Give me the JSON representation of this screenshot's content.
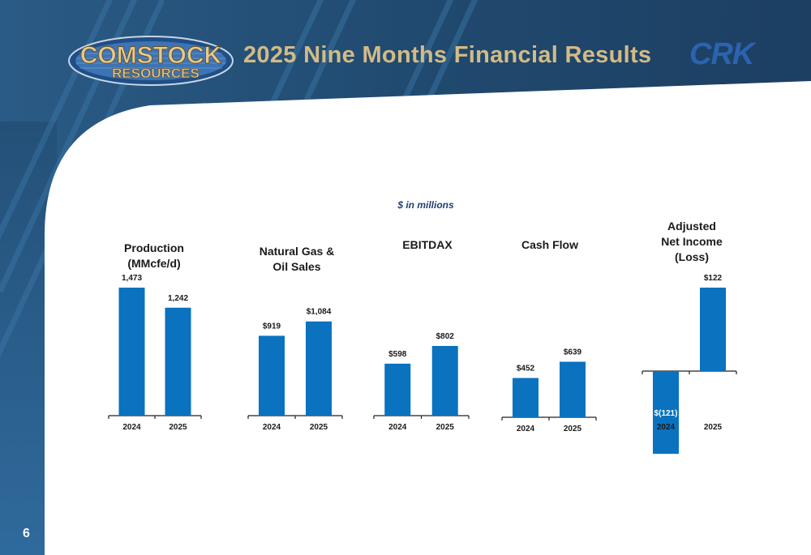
{
  "header": {
    "logo_top": "COMSTOCK",
    "logo_bottom": "RESOURCES",
    "title": "2025 Nine Months Financial Results",
    "ticker": "CRK"
  },
  "units_note": "$ in millions",
  "page_number": "6",
  "colors": {
    "bar": "#0a72bf",
    "title_gold": "#d3bb86",
    "navy": "#1c3f62"
  },
  "chart_data": [
    {
      "type": "bar",
      "title": "Production\n(MMcfe/d)",
      "categories": [
        "2024",
        "2025"
      ],
      "values": [
        1473,
        1242
      ],
      "labels": [
        "1,473",
        "1,242"
      ]
    },
    {
      "type": "bar",
      "title": "Natural Gas &\nOil Sales",
      "categories": [
        "2024",
        "2025"
      ],
      "values": [
        919,
        1084
      ],
      "labels": [
        "$919",
        "$1,084"
      ]
    },
    {
      "type": "bar",
      "title": "EBITDAX",
      "categories": [
        "2024",
        "2025"
      ],
      "values": [
        598,
        802
      ],
      "labels": [
        "$598",
        "$802"
      ]
    },
    {
      "type": "bar",
      "title": "Cash Flow",
      "categories": [
        "2024",
        "2025"
      ],
      "values": [
        452,
        639
      ],
      "labels": [
        "$452",
        "$639"
      ]
    },
    {
      "type": "bar",
      "title": "Adjusted\nNet Income\n(Loss)",
      "categories": [
        "2024",
        "2025"
      ],
      "values": [
        -121,
        122
      ],
      "labels": [
        "$(121)",
        "$122"
      ]
    }
  ]
}
